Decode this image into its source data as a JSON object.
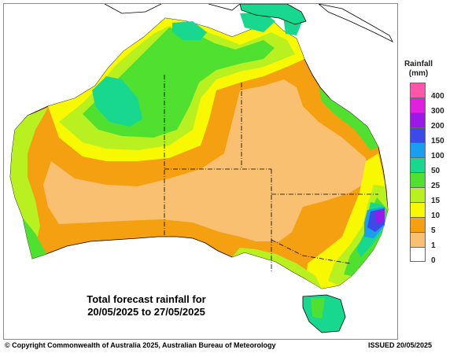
{
  "map": {
    "caption_line1": "Total forecast rainfall for",
    "caption_line2": "20/05/2025 to 27/05/2025"
  },
  "legend": {
    "title_line1": "Rainfall",
    "title_line2": "(mm)",
    "classes": [
      {
        "label": "400",
        "color": "#ff55aa"
      },
      {
        "label": "300",
        "color": "#e020e0"
      },
      {
        "label": "200",
        "color": "#9a18e8"
      },
      {
        "label": "150",
        "color": "#3c4ae8"
      },
      {
        "label": "100",
        "color": "#1a9ef0"
      },
      {
        "label": "50",
        "color": "#18d890"
      },
      {
        "label": "25",
        "color": "#50e030"
      },
      {
        "label": "15",
        "color": "#b8f020"
      },
      {
        "label": "10",
        "color": "#f8f800"
      },
      {
        "label": "5",
        "color": "#f4a010"
      },
      {
        "label": "1",
        "color": "#f8c070"
      },
      {
        "label": "0",
        "color": "#ffffff"
      }
    ]
  },
  "footer": {
    "copyright": "© Copyright Commonwealth of Australia 2025, Australian Bureau of Meteorology",
    "issued": "ISSUED 20/05/2025"
  }
}
